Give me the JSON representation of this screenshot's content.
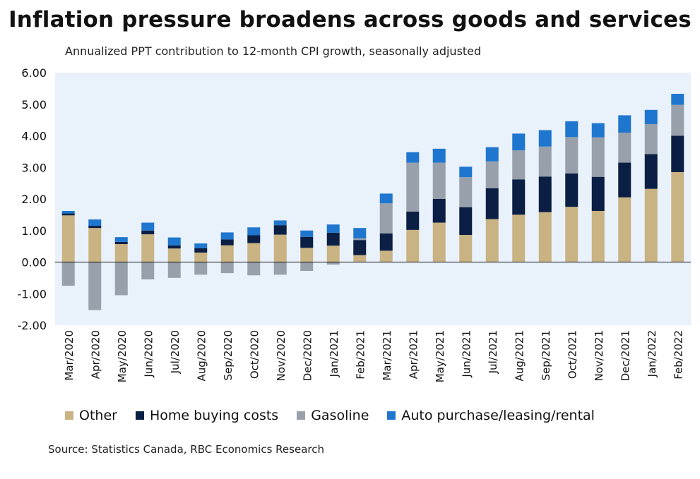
{
  "title": "Inflation pressure broadens across goods and services",
  "subtitle": "Annualized PPT contribution to 12-month CPI growth, seasonally adjusted",
  "source": "Source: Statistics Canada, RBC Economics Research",
  "colors": {
    "plot_bg": "#e9f1fb",
    "Other": "#c9b383",
    "Home buying costs": "#0b1f45",
    "Gasoline": "#98a1ab",
    "Auto purchase/leasing/rental": "#1f76cf"
  },
  "chart_data": {
    "type": "bar",
    "stacked": true,
    "ylim": [
      -2,
      6
    ],
    "yticks": [
      "6.00",
      "5.00",
      "4.00",
      "3.00",
      "2.00",
      "1.00",
      "0.00",
      "-1.00",
      "-2.00"
    ],
    "grid": false,
    "legend_position": "bottom",
    "categories": [
      "Mar/2020",
      "Apr/2020",
      "May/2020",
      "Jun/2020",
      "Jul/2020",
      "Aug/2020",
      "Sep/2020",
      "Oct/2020",
      "Nov/2020",
      "Dec/2020",
      "Jan/2021",
      "Feb/2021",
      "Mar/2021",
      "Apr/2021",
      "May/2021",
      "Jun/2021",
      "Jul/2021",
      "Aug/2021",
      "Sep/2021",
      "Oct/2021",
      "Nov/2021",
      "Dec/2021",
      "Jan/2022",
      "Feb/2022"
    ],
    "series": [
      {
        "name": "Other",
        "values": [
          1.48,
          1.08,
          0.57,
          0.88,
          0.43,
          0.3,
          0.53,
          0.6,
          0.87,
          0.45,
          0.52,
          0.22,
          0.36,
          1.02,
          1.25,
          0.86,
          1.36,
          1.5,
          1.58,
          1.75,
          1.62,
          2.05,
          2.32,
          2.85
        ]
      },
      {
        "name": "Home buying costs",
        "values": [
          0.06,
          0.07,
          0.07,
          0.12,
          0.1,
          0.14,
          0.19,
          0.25,
          0.3,
          0.35,
          0.41,
          0.48,
          0.55,
          0.58,
          0.75,
          0.88,
          0.98,
          1.12,
          1.13,
          1.06,
          1.08,
          1.1,
          1.1,
          1.15
        ]
      },
      {
        "name": "Gasoline",
        "values": [
          -0.75,
          -1.52,
          -1.05,
          -0.55,
          -0.5,
          -0.4,
          -0.35,
          -0.42,
          -0.4,
          -0.28,
          -0.08,
          0.05,
          0.95,
          1.55,
          1.15,
          0.95,
          0.85,
          0.92,
          0.95,
          1.15,
          1.25,
          0.95,
          0.95,
          0.98
        ]
      },
      {
        "name": "Auto purchase/leasing/rental",
        "values": [
          0.08,
          0.2,
          0.15,
          0.25,
          0.25,
          0.15,
          0.22,
          0.25,
          0.15,
          0.2,
          0.26,
          0.33,
          0.31,
          0.33,
          0.44,
          0.33,
          0.45,
          0.53,
          0.52,
          0.5,
          0.45,
          0.55,
          0.45,
          0.35
        ]
      }
    ]
  }
}
